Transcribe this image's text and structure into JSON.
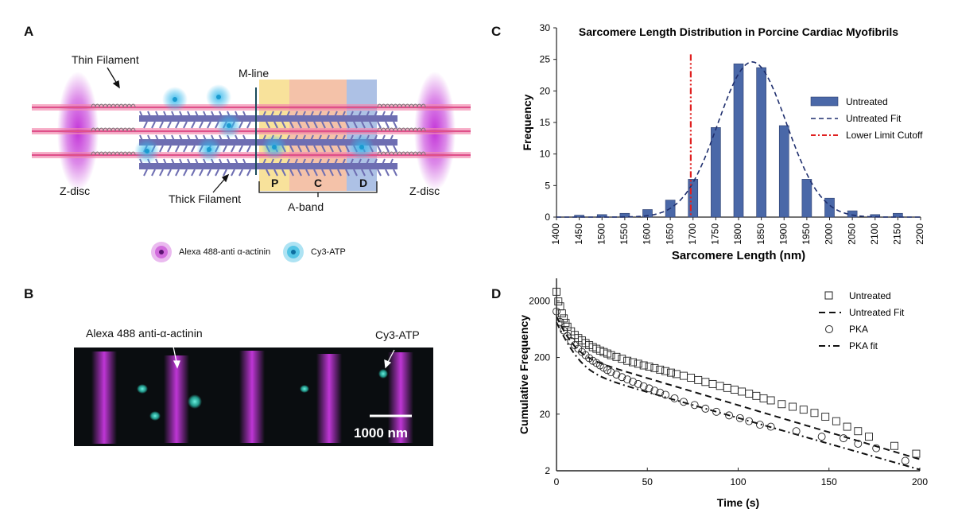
{
  "figure": {
    "panels": {
      "a": {
        "letter": "A",
        "thin_filament": "Thin Filament",
        "thick_filament": "Thick Filament",
        "m_line": "M-line",
        "z_disc_left": "Z-disc",
        "z_disc_right": "Z-disc",
        "a_band": "A-band",
        "zones": [
          "P",
          "C",
          "D"
        ],
        "legend": [
          {
            "label": "Alexa 488-anti α-actinin",
            "color": "#c23ad1"
          },
          {
            "label": "Cy3-ATP",
            "color": "#18b0dc"
          }
        ],
        "colors": {
          "actin": "#e0508a",
          "myosin": "#6e6eb2",
          "zdisc": "#c02bd6",
          "p_zone": "#f7dd8a",
          "c_zone": "#f2b79a",
          "d_zone": "#9fb6e0"
        }
      },
      "b": {
        "letter": "B",
        "label_actinin": "Alexa 488 anti-α-actinin",
        "label_cy3": "Cy3-ATP",
        "scale_bar": "1000 nm",
        "colors": {
          "background": "#0a0d10",
          "magenta": "#c838e0",
          "cyan": "#2fd8c4"
        }
      },
      "c": {
        "letter": "C"
      },
      "d": {
        "letter": "D"
      }
    }
  },
  "chart_data": [
    {
      "id": "C",
      "type": "bar",
      "title": "Sarcomere Length Distribution in Porcine Cardiac Myofibrils",
      "xlabel": "Sarcomere Length (nm)",
      "ylabel": "Frequency",
      "xlim": [
        1400,
        2200
      ],
      "ylim": [
        0,
        30
      ],
      "xticks": [
        "1400",
        "1450",
        "1500",
        "1550",
        "1600",
        "1650",
        "1700",
        "1750",
        "1800",
        "1850",
        "1900",
        "1950",
        "2000",
        "2050",
        "2100",
        "2150",
        "2200"
      ],
      "yticks": [
        "0",
        "5",
        "10",
        "15",
        "20",
        "25",
        "30"
      ],
      "bar_x": [
        1450,
        1500,
        1550,
        1600,
        1650,
        1700,
        1750,
        1800,
        1850,
        1900,
        1950,
        2000,
        2050,
        2100,
        2150
      ],
      "bar_values": [
        0.3,
        0.4,
        0.6,
        1.2,
        2.7,
        6.0,
        14.2,
        24.3,
        23.7,
        14.5,
        6.0,
        3.0,
        1.0,
        0.4,
        0.6
      ],
      "fit": {
        "mean": 1830,
        "sd": 75,
        "peak": 24.6
      },
      "cutoff_x": 1695,
      "legend": [
        "Untreated",
        "Untreated Fit",
        "Lower Limit Cutoff"
      ],
      "colors": {
        "bar": "#4a68a8",
        "fit": "#1f2f6e",
        "cutoff": "#e02020"
      }
    },
    {
      "id": "D",
      "type": "scatter",
      "xlabel": "Time (s)",
      "ylabel": "Cumulative Frequency",
      "xlim": [
        0,
        200
      ],
      "ylim": [
        2,
        5000
      ],
      "yscale": "log",
      "xticks": [
        "0",
        "50",
        "100",
        "150",
        "200"
      ],
      "ytick_values": [
        2,
        20,
        200,
        2000
      ],
      "ytick_labels": [
        "2",
        "20",
        "200",
        "2000"
      ],
      "legend": [
        "Untreated",
        "Untreated Fit",
        "PKA",
        "PKA fit"
      ],
      "series": [
        {
          "name": "Untreated",
          "marker": "square",
          "t": [
            0,
            1,
            2,
            3,
            4,
            5,
            6,
            8,
            10,
            12,
            14,
            16,
            18,
            20,
            22,
            24,
            26,
            28,
            30,
            33,
            36,
            39,
            42,
            45,
            48,
            51,
            54,
            57,
            60,
            63,
            66,
            70,
            74,
            78,
            82,
            86,
            90,
            94,
            98,
            102,
            106,
            110,
            114,
            118,
            124,
            130,
            136,
            142,
            148,
            154,
            160,
            166,
            172,
            186,
            198
          ],
          "y": [
            2900,
            1950,
            1600,
            1200,
            980,
            820,
            700,
            580,
            500,
            440,
            400,
            360,
            330,
            305,
            285,
            265,
            250,
            235,
            220,
            205,
            190,
            175,
            165,
            155,
            145,
            138,
            130,
            122,
            115,
            108,
            102,
            95,
            88,
            80,
            74,
            68,
            63,
            58,
            54,
            50,
            46,
            42,
            38,
            35,
            30,
            27,
            24,
            21,
            18,
            15,
            12,
            10,
            8,
            5.5,
            4
          ]
        },
        {
          "name": "PKA",
          "marker": "circle",
          "t": [
            0,
            2,
            4,
            6,
            8,
            10,
            12,
            14,
            16,
            18,
            20,
            22,
            24,
            26,
            28,
            30,
            33,
            36,
            39,
            42,
            45,
            48,
            51,
            54,
            57,
            60,
            65,
            70,
            76,
            82,
            88,
            95,
            101,
            106,
            112,
            118,
            132,
            146,
            158,
            166,
            176,
            192
          ],
          "y": [
            1300,
            850,
            600,
            480,
            390,
            330,
            285,
            250,
            220,
            195,
            175,
            160,
            145,
            132,
            120,
            110,
            100,
            90,
            82,
            75,
            68,
            62,
            57,
            52,
            48,
            44,
            38,
            33,
            29,
            25,
            22,
            19,
            17,
            15,
            13,
            12,
            10,
            8,
            7.5,
            6,
            5,
            3
          ]
        }
      ],
      "fits": [
        {
          "name": "Untreated Fit",
          "style": "dashed",
          "a1": 800,
          "k1": 0.2,
          "a2": 260,
          "k2": 0.022
        },
        {
          "name": "PKA fit",
          "style": "dashdot",
          "a1": 700,
          "k1": 0.18,
          "a2": 140,
          "k2": 0.021
        }
      ]
    }
  ]
}
